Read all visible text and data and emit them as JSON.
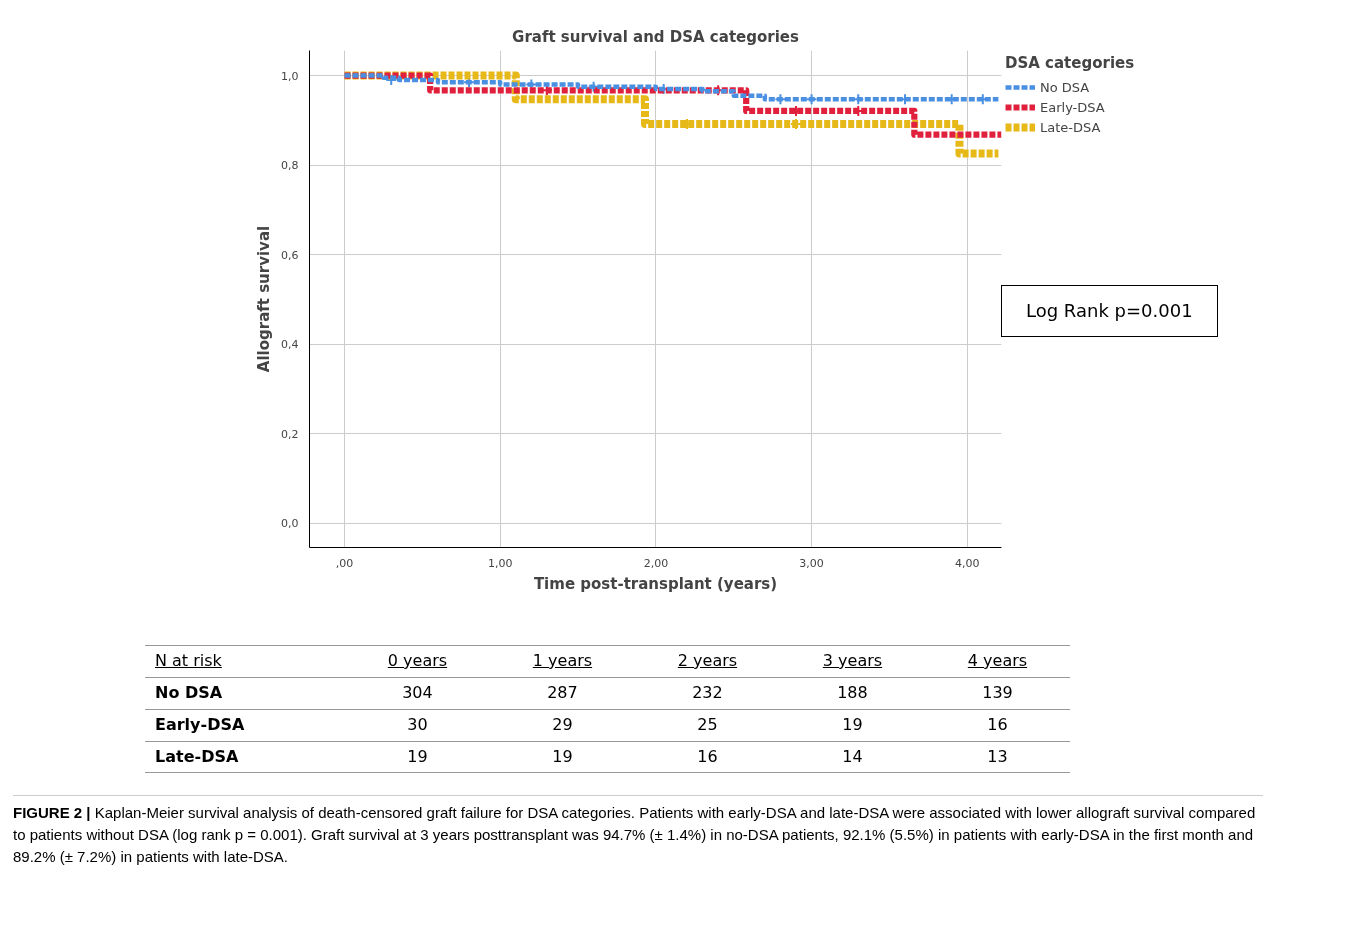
{
  "chart_data": {
    "type": "step",
    "title": "Graft survival and DSA categories",
    "xlabel": "Time post-transplant (years)",
    "ylabel": "Allograft survival",
    "legend_title": "DSA categories",
    "xlim": [
      -0.225,
      4.22
    ],
    "ylim": [
      -0.054,
      1.056
    ],
    "xticks": [
      {
        "value": 0,
        "label": ",00"
      },
      {
        "value": 1,
        "label": "1,00"
      },
      {
        "value": 2,
        "label": "2,00"
      },
      {
        "value": 3,
        "label": "3,00"
      },
      {
        "value": 4,
        "label": "4,00"
      }
    ],
    "yticks": [
      {
        "value": 0,
        "label": "0,0"
      },
      {
        "value": 0.2,
        "label": "0,2"
      },
      {
        "value": 0.4,
        "label": "0,4"
      },
      {
        "value": 0.6,
        "label": "0,6"
      },
      {
        "value": 0.8,
        "label": "0,8"
      },
      {
        "value": 1,
        "label": "1,0"
      }
    ],
    "grid": true,
    "legend": "right",
    "line_style": "dashed",
    "series": [
      {
        "name": "No DSA",
        "color": "#4a90e2",
        "x": [
          0,
          0.25,
          0.35,
          0.6,
          1.0,
          1.5,
          2.0,
          2.3,
          2.5,
          2.7,
          4.2
        ],
        "values": [
          1.0,
          0.995,
          0.99,
          0.985,
          0.98,
          0.975,
          0.97,
          0.965,
          0.955,
          0.947,
          0.947
        ]
      },
      {
        "name": "Early-DSA",
        "color": "#e0203c",
        "x": [
          0,
          0.55,
          2.58,
          3.66,
          4.22
        ],
        "values": [
          1.0,
          0.967,
          0.921,
          0.868,
          0.868
        ]
      },
      {
        "name": "Late-DSA",
        "color": "#e6b818",
        "x": [
          0,
          1.1,
          1.93,
          3.95,
          4.2
        ],
        "values": [
          1.0,
          0.947,
          0.892,
          0.826,
          0.826
        ]
      },
      {
        "type": "scatter",
        "marker": "cross",
        "color": "#4a90e2",
        "x": [
          0.3,
          0.8,
          1.2,
          1.6,
          2.05,
          2.8,
          3.0,
          3.3,
          3.6,
          3.9,
          4.1
        ],
        "values": [
          0.99,
          0.985,
          0.98,
          0.975,
          0.97,
          0.947,
          0.947,
          0.947,
          0.947,
          0.947,
          0.947
        ]
      },
      {
        "type": "scatter",
        "marker": "cross",
        "color": "#e0203c",
        "x": [
          1.3,
          2.4,
          2.9,
          3.3
        ],
        "values": [
          0.967,
          0.967,
          0.921,
          0.921
        ]
      },
      {
        "type": "scatter",
        "marker": "cross",
        "color": "#e6b818",
        "x": [
          2.2,
          2.9
        ],
        "values": [
          0.892,
          0.892
        ]
      }
    ],
    "annotations": [
      "Log Rank p=0.001",
      "N at risk",
      "0 years",
      "1 years",
      "2 years",
      "3 years",
      "4 years",
      "No DSA",
      "304",
      "287",
      "232",
      "188",
      "139",
      "Early-DSA",
      "30",
      "29",
      "25",
      "19",
      "16",
      "Late-DSA",
      "19",
      "19",
      "16",
      "14",
      "13",
      "FIGURE 2 | Kaplan-Meier survival analysis of death-censored graft failure for DSA categories. Patients with early-DSA and late-DSA were associated with lower allograft survival compared to patients without DSA (log rank p = 0.001). Graft survival at 3 years posttransplant was 94.7% (± 1.4%) in no-DSA patients, 92.1% (5.5%) in patients with early-DSA in the first month and 89.2% (± 7.2%) in patients with late-DSA."
    ]
  }
}
